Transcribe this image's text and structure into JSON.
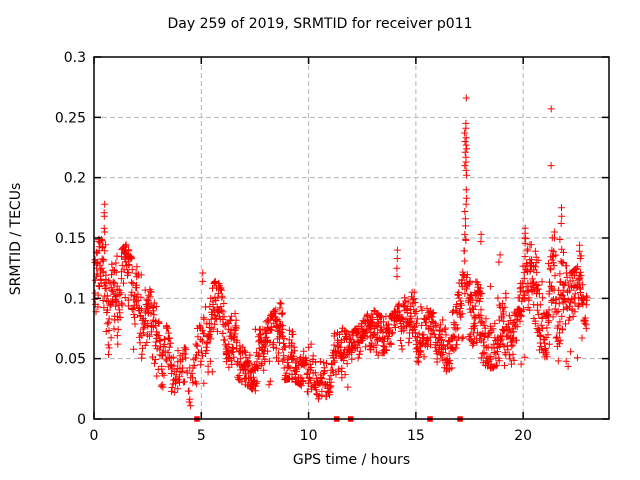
{
  "chart_data": {
    "type": "scatter",
    "title": "Day 259 of 2019, SRMTID for receiver p011",
    "xlabel": "GPS time / hours",
    "ylabel": "SRMTID / TECUs",
    "xlim": [
      0,
      24
    ],
    "ylim": [
      0,
      0.3
    ],
    "xticks": [
      {
        "v": 0,
        "label": "0"
      },
      {
        "v": 5,
        "label": "5"
      },
      {
        "v": 10,
        "label": "10"
      },
      {
        "v": 15,
        "label": "15"
      },
      {
        "v": 20,
        "label": "20"
      }
    ],
    "yticks": [
      {
        "v": 0,
        "label": "0"
      },
      {
        "v": 0.05,
        "label": "0.05"
      },
      {
        "v": 0.1,
        "label": "0.1"
      },
      {
        "v": 0.15,
        "label": "0.15"
      },
      {
        "v": 0.2,
        "label": "0.2"
      },
      {
        "v": 0.25,
        "label": "0.25"
      },
      {
        "v": 0.3,
        "label": "0.3"
      }
    ],
    "grid": true,
    "legend": "none",
    "marker": "plus",
    "marker_color": "#ff0000",
    "grid_color": "#b5b5b5",
    "axis_color": "#000000",
    "background_color": "#ffffff",
    "seed": 20190259,
    "domain": [
      0.02,
      22.95
    ],
    "envelope": [
      [
        0.0,
        0.05,
        0.145
      ],
      [
        0.3,
        0.055,
        0.15
      ],
      [
        0.6,
        0.05,
        0.14
      ],
      [
        1.0,
        0.06,
        0.135
      ],
      [
        1.5,
        0.055,
        0.145
      ],
      [
        2.0,
        0.05,
        0.125
      ],
      [
        2.5,
        0.04,
        0.11
      ],
      [
        3.0,
        0.028,
        0.09
      ],
      [
        3.5,
        0.02,
        0.07
      ],
      [
        4.0,
        0.012,
        0.062
      ],
      [
        4.5,
        0.01,
        0.055
      ],
      [
        4.9,
        0.02,
        0.08
      ],
      [
        5.3,
        0.035,
        0.11
      ],
      [
        5.7,
        0.04,
        0.115
      ],
      [
        6.1,
        0.04,
        0.1
      ],
      [
        6.5,
        0.035,
        0.09
      ],
      [
        7.0,
        0.028,
        0.082
      ],
      [
        7.5,
        0.022,
        0.075
      ],
      [
        8.0,
        0.02,
        0.08
      ],
      [
        8.6,
        0.03,
        0.095
      ],
      [
        9.1,
        0.032,
        0.105
      ],
      [
        9.6,
        0.028,
        0.08
      ],
      [
        10.0,
        0.02,
        0.07
      ],
      [
        10.5,
        0.015,
        0.058
      ],
      [
        11.0,
        0.02,
        0.062
      ],
      [
        11.4,
        0.028,
        0.078
      ],
      [
        11.9,
        0.025,
        0.07
      ],
      [
        12.4,
        0.03,
        0.078
      ],
      [
        12.9,
        0.038,
        0.092
      ],
      [
        13.3,
        0.035,
        0.085
      ],
      [
        13.8,
        0.03,
        0.085
      ],
      [
        14.2,
        0.04,
        0.095
      ],
      [
        14.6,
        0.045,
        0.105
      ],
      [
        15.0,
        0.048,
        0.105
      ],
      [
        15.5,
        0.04,
        0.092
      ],
      [
        16.0,
        0.035,
        0.085
      ],
      [
        16.5,
        0.04,
        0.09
      ],
      [
        17.0,
        0.045,
        0.11
      ],
      [
        17.3,
        0.05,
        0.15
      ],
      [
        17.7,
        0.05,
        0.13
      ],
      [
        18.1,
        0.045,
        0.14
      ],
      [
        18.5,
        0.04,
        0.12
      ],
      [
        18.9,
        0.045,
        0.13
      ],
      [
        19.3,
        0.04,
        0.1
      ],
      [
        19.7,
        0.035,
        0.09
      ],
      [
        20.1,
        0.05,
        0.15
      ],
      [
        20.5,
        0.055,
        0.14
      ],
      [
        20.9,
        0.05,
        0.12
      ],
      [
        21.3,
        0.05,
        0.15
      ],
      [
        21.7,
        0.045,
        0.155
      ],
      [
        22.1,
        0.04,
        0.12
      ],
      [
        22.5,
        0.05,
        0.125
      ],
      [
        22.75,
        0.055,
        0.14
      ],
      [
        22.95,
        0.05,
        0.1
      ]
    ],
    "density_per_hour": [
      [
        0,
        95
      ],
      [
        2.5,
        85
      ],
      [
        3.5,
        70
      ],
      [
        4.3,
        40
      ],
      [
        4.9,
        55
      ],
      [
        5.5,
        85
      ],
      [
        7,
        90
      ],
      [
        9.5,
        85
      ],
      [
        10.3,
        55
      ],
      [
        11.2,
        70
      ],
      [
        12,
        80
      ],
      [
        13,
        85
      ],
      [
        14,
        80
      ],
      [
        15,
        85
      ],
      [
        16,
        75
      ],
      [
        17,
        85
      ],
      [
        18,
        90
      ],
      [
        19,
        80
      ],
      [
        20,
        95
      ],
      [
        21,
        95
      ],
      [
        22,
        95
      ],
      [
        22.95,
        90
      ]
    ],
    "clusters": [
      {
        "x": 0.5,
        "spread": 0.08,
        "y": [
          0.155,
          0.158,
          0.168,
          0.171,
          0.178
        ]
      },
      {
        "x": 5.05,
        "spread": 0.05,
        "y": [
          0.114,
          0.121
        ]
      },
      {
        "x": 14.12,
        "spread": 0.05,
        "y": [
          0.118,
          0.125,
          0.133,
          0.14
        ]
      },
      {
        "x": 17.32,
        "spread": 0.1,
        "y": [
          0.266,
          0.245,
          0.241,
          0.237,
          0.233,
          0.23,
          0.227,
          0.224,
          0.221,
          0.217,
          0.213,
          0.21,
          0.206,
          0.202,
          0.19,
          0.183,
          0.178,
          0.172,
          0.166,
          0.16,
          0.153
        ]
      },
      {
        "x": 18.05,
        "spread": 0.05,
        "y": [
          0.147,
          0.153
        ]
      },
      {
        "x": 18.9,
        "spread": 0.06,
        "y": [
          0.13,
          0.136
        ]
      },
      {
        "x": 20.1,
        "spread": 0.06,
        "y": [
          0.15,
          0.154,
          0.158
        ]
      },
      {
        "x": 21.3,
        "spread": 0.02,
        "y": [
          0.21,
          0.257
        ]
      },
      {
        "x": 21.45,
        "spread": 0.05,
        "y": [
          0.15,
          0.155
        ]
      },
      {
        "x": 21.8,
        "spread": 0.07,
        "y": [
          0.162,
          0.168,
          0.175
        ]
      },
      {
        "x": 22.65,
        "spread": 0.06,
        "y": [
          0.133,
          0.139,
          0.144
        ]
      }
    ],
    "zero_markers_hours": [
      4.8,
      11.31,
      11.96,
      15.66,
      17.06
    ]
  }
}
